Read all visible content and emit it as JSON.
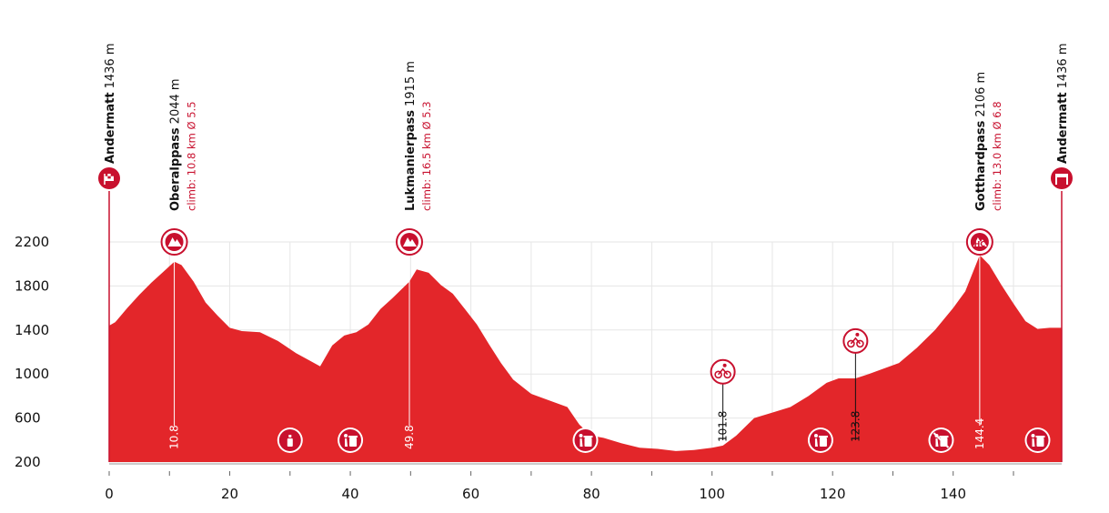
{
  "chart_data": {
    "type": "area",
    "title": "",
    "xlabel": "",
    "ylabel": "",
    "xlim": [
      0,
      158
    ],
    "ylim": [
      200,
      2200
    ],
    "x_ticks": [
      0,
      20,
      40,
      60,
      80,
      100,
      120,
      140
    ],
    "y_ticks": [
      200,
      600,
      1000,
      1400,
      1800,
      2200
    ],
    "grid": true,
    "colors": {
      "profile": "#e3262a",
      "marker": "#c8102e",
      "grid": "#e6e6e6"
    },
    "profile": {
      "x": [
        0,
        1,
        3,
        5,
        7,
        9,
        10.8,
        12,
        14,
        16,
        18,
        20,
        22,
        25,
        28,
        31,
        33,
        35,
        37,
        39,
        41,
        43,
        45,
        47,
        49.8,
        51,
        53,
        55,
        57,
        59,
        61,
        63,
        65,
        67,
        70,
        73,
        76,
        78,
        80,
        82,
        85,
        88,
        91,
        94,
        97,
        100,
        101.8,
        104,
        107,
        110,
        113,
        116,
        119,
        121,
        123.8,
        126,
        128,
        131,
        134,
        137,
        140,
        142,
        144.4,
        146,
        148,
        150,
        152,
        154,
        156,
        158
      ],
      "y": [
        1440,
        1470,
        1600,
        1720,
        1830,
        1930,
        2020,
        1990,
        1840,
        1650,
        1530,
        1420,
        1390,
        1380,
        1300,
        1190,
        1130,
        1070,
        1260,
        1350,
        1380,
        1450,
        1590,
        1690,
        1840,
        1950,
        1920,
        1810,
        1730,
        1590,
        1450,
        1270,
        1100,
        950,
        820,
        760,
        700,
        540,
        440,
        420,
        370,
        330,
        320,
        300,
        310,
        330,
        350,
        440,
        600,
        650,
        700,
        800,
        920,
        960,
        960,
        1000,
        1040,
        1100,
        1240,
        1400,
        1600,
        1750,
        2080,
        1990,
        1810,
        1640,
        1480,
        1410,
        1420,
        1420
      ]
    },
    "locations": [
      {
        "name": "Andermatt",
        "alt": "1436 m",
        "climb": "",
        "km": 0,
        "icon": "start-flag-icon"
      },
      {
        "name": "Oberalppass",
        "alt": "2044 m",
        "climb": "climb: 10.8 km Ø 5.5",
        "km": 10.8,
        "icon": "mountain-icon"
      },
      {
        "name": "Lukmanierpass",
        "alt": "1915 m",
        "climb": "climb: 16.5 km Ø 5.3",
        "km": 49.8,
        "icon": "mountain-icon"
      },
      {
        "name": "Gotthardpass",
        "alt": "2106 m",
        "climb": "climb: 13.0 km Ø 6.8",
        "km": 144.4,
        "icon": "hc-mountain-icon"
      },
      {
        "name": "Andermatt",
        "alt": "1436 m",
        "climb": "",
        "km": 158,
        "icon": "finish-icon"
      }
    ],
    "markers": [
      {
        "km": 10.8,
        "label": "10.8"
      },
      {
        "km": 49.8,
        "label": "49.8"
      },
      {
        "km": 101.8,
        "label": "101.8",
        "icon": "sprint-cyclist-icon",
        "alt": 1020
      },
      {
        "km": 123.8,
        "label": "123.8",
        "icon": "sprint-cyclist-icon",
        "alt": 1300
      },
      {
        "km": 144.4,
        "label": "144.4"
      }
    ],
    "service_icons": [
      {
        "km": 30,
        "icon": "feed-zone-icon"
      },
      {
        "km": 40,
        "icon": "waste-zone-icon"
      },
      {
        "km": 79,
        "icon": "waste-zone-icon"
      },
      {
        "km": 118,
        "icon": "waste-zone-icon"
      },
      {
        "km": 138,
        "icon": "no-littering-icon"
      },
      {
        "km": 154,
        "icon": "waste-zone-icon"
      }
    ]
  }
}
